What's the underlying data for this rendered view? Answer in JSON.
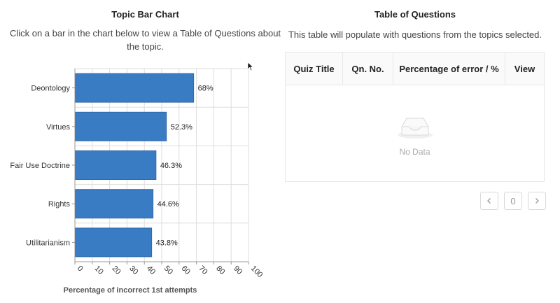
{
  "left": {
    "title": "Topic Bar Chart",
    "description": "Click on a bar in the chart below to view a Table of Questions about the topic."
  },
  "right": {
    "title": "Table of Questions",
    "description": "This table will populate with questions from the topics selected.",
    "columns": [
      "Quiz Title",
      "Qn. No.",
      "Percentage of error / %",
      "View"
    ],
    "empty_text": "No Data",
    "pagination": {
      "prev_icon": "chevron-left-icon",
      "current_page": "0",
      "next_icon": "chevron-right-icon"
    }
  },
  "colors": {
    "bar": "#3a7cc4",
    "bar_border": "#2f69a8",
    "grid": "#dddddd",
    "axis": "#999999"
  },
  "chart_data": {
    "type": "bar",
    "orientation": "horizontal",
    "categories": [
      "Deontology",
      "Virtues",
      "Fair Use Doctrine",
      "Rights",
      "Utilitarianism"
    ],
    "values": [
      68,
      52.3,
      46.3,
      44.6,
      43.8
    ],
    "value_labels": [
      "68%",
      "52.3%",
      "46.3%",
      "44.6%",
      "43.8%"
    ],
    "xlabel": "Percentage of incorrect 1st attempts",
    "ylabel": "",
    "xlim": [
      0,
      100
    ],
    "xticks": [
      0,
      10,
      20,
      30,
      40,
      50,
      60,
      70,
      80,
      90,
      100
    ],
    "grid": true
  }
}
